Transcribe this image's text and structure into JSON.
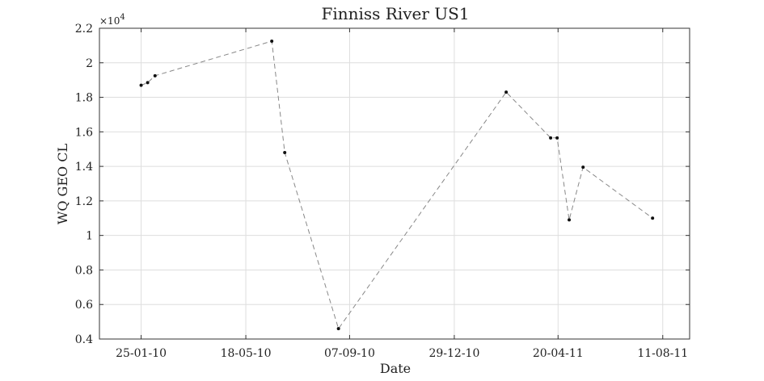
{
  "chart_data": {
    "type": "line",
    "title": "Finniss River US1",
    "xlabel": "Date",
    "ylabel": "WQ GEO CL",
    "y_exponent_label": "×10",
    "y_exponent_power": "4",
    "xlim": [
      "2009-12-11",
      "2011-09-09"
    ],
    "ylim": [
      0.4,
      2.2
    ],
    "y_ticks": [
      0.4,
      0.6,
      0.8,
      1,
      1.2,
      1.4,
      1.6,
      1.8,
      2,
      2.2
    ],
    "y_tick_labels": [
      "0.4",
      "0.6",
      "0.8",
      "1",
      "1.2",
      "1.4",
      "1.6",
      "1.8",
      "2",
      "2.2"
    ],
    "x_ticks": [
      "2010-01-25",
      "2010-05-18",
      "2010-09-07",
      "2010-12-29",
      "2011-04-20",
      "2011-08-11"
    ],
    "x_tick_labels": [
      "25-01-10",
      "18-05-10",
      "07-09-10",
      "29-12-10",
      "20-04-11",
      "11-08-11"
    ],
    "grid": true,
    "line_color": "#888888",
    "marker_color": "#111111",
    "series": [
      {
        "x": [
          "2010-01-25",
          "2010-02-01",
          "2010-02-09",
          "2010-06-15",
          "2010-06-29",
          "2010-08-26",
          "2011-02-23",
          "2011-04-12",
          "2011-04-19",
          "2011-05-02",
          "2011-05-17",
          "2011-07-31"
        ],
        "y": [
          1.87,
          1.885,
          1.925,
          2.125,
          1.48,
          0.46,
          1.83,
          1.565,
          1.565,
          1.09,
          1.395,
          1.1
        ]
      }
    ]
  }
}
